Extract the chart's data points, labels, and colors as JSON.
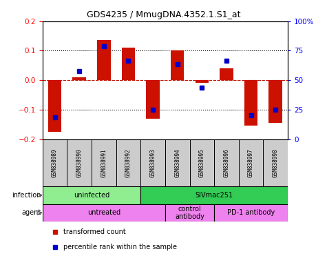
{
  "title": "GDS4235 / MmugDNA.4352.1.S1_at",
  "samples": [
    "GSM838989",
    "GSM838990",
    "GSM838991",
    "GSM838992",
    "GSM838993",
    "GSM838994",
    "GSM838995",
    "GSM838996",
    "GSM838997",
    "GSM838998"
  ],
  "red_bars": [
    -0.175,
    0.01,
    0.135,
    0.11,
    -0.13,
    0.1,
    -0.01,
    0.04,
    -0.155,
    -0.145
  ],
  "blue_squares": [
    -0.125,
    0.03,
    0.115,
    0.065,
    -0.1,
    0.055,
    -0.025,
    0.065,
    -0.12,
    -0.1
  ],
  "ylim_left": [
    -0.2,
    0.2
  ],
  "ylim_right": [
    0,
    100
  ],
  "yticks_left": [
    -0.2,
    -0.1,
    0.0,
    0.1,
    0.2
  ],
  "yticks_right": [
    0,
    25,
    50,
    75,
    100
  ],
  "ytick_labels_right": [
    "0",
    "25",
    "50",
    "75",
    "100%"
  ],
  "hlines": [
    -0.1,
    0.0,
    0.1
  ],
  "infection_groups": [
    {
      "label": "uninfected",
      "start": 0,
      "end": 3,
      "color": "#90EE90"
    },
    {
      "label": "SIVmac251",
      "start": 4,
      "end": 9,
      "color": "#33CC55"
    }
  ],
  "agent_groups": [
    {
      "label": "untreated",
      "start": 0,
      "end": 4,
      "color": "#EE82EE"
    },
    {
      "label": "control\nantibody",
      "start": 5,
      "end": 6,
      "color": "#EE82EE"
    },
    {
      "label": "PD-1 antibody",
      "start": 7,
      "end": 9,
      "color": "#EE82EE"
    }
  ],
  "bar_color": "#CC1100",
  "square_color": "#0000CC",
  "legend_items": [
    "transformed count",
    "percentile rank within the sample"
  ],
  "infection_label": "infection",
  "agent_label": "agent",
  "sample_box_color": "#CCCCCC",
  "white": "#FFFFFF"
}
